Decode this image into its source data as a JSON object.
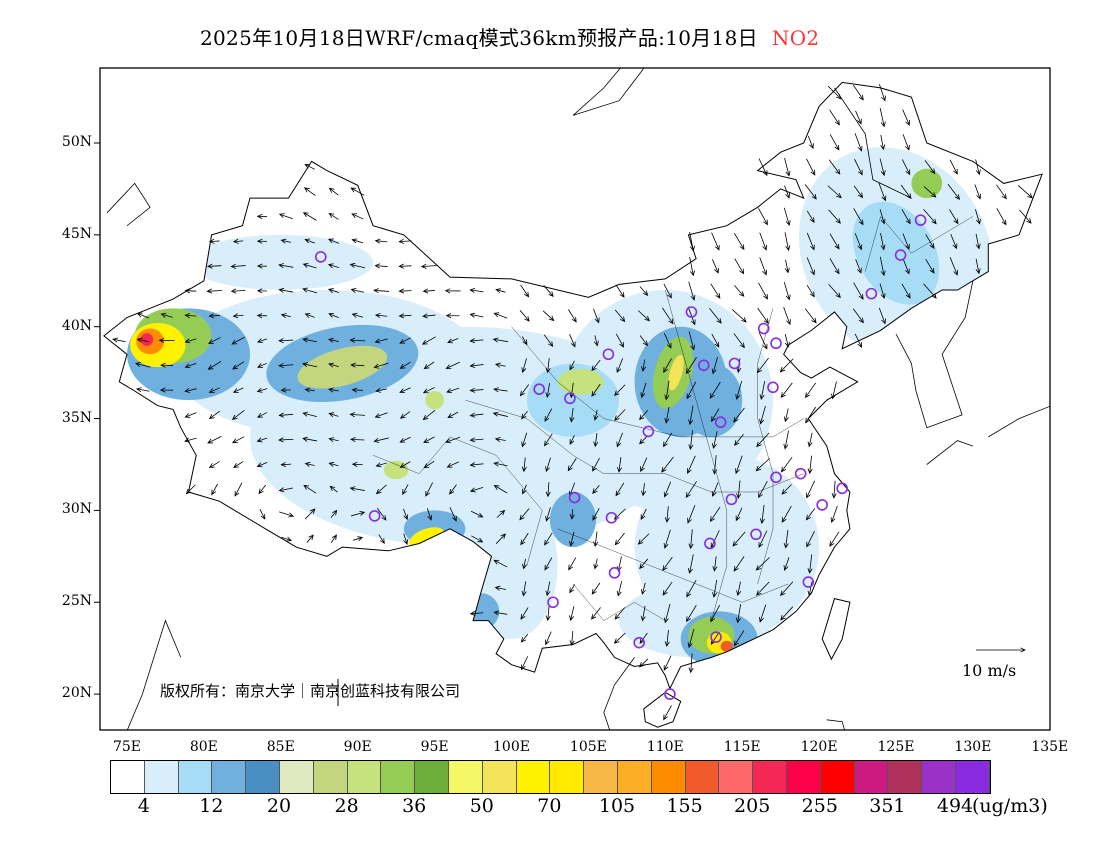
{
  "title": {
    "text": "2025年10月18日WRF/cmaq模式36km预报产品:10月18日",
    "species": "NO2"
  },
  "lat_labels": [
    "50N",
    "45N",
    "40N",
    "35N",
    "30N",
    "25N",
    "20N"
  ],
  "lon_labels": [
    "75E",
    "80E",
    "85E",
    "90E",
    "95E",
    "100E",
    "105E",
    "110E",
    "115E",
    "120E",
    "125E",
    "130E",
    "135E"
  ],
  "copyright": "版权所有：南京大学｜南京创蓝科技有限公司",
  "wind_scale_label": "10 m/s",
  "colorbar": {
    "colors": [
      "#ffffff",
      "#d8eefa",
      "#a6dcf5",
      "#6fb0de",
      "#4a8fc4",
      "#e0eac0",
      "#c3d67f",
      "#c6e27c",
      "#95cc55",
      "#6fad3a",
      "#f4f766",
      "#f3e45a",
      "#fff200",
      "#ffea00",
      "#f6b748",
      "#fdae26",
      "#ff8c00",
      "#f15a2c",
      "#ff6868",
      "#f52855",
      "#ff0048",
      "#ff0000",
      "#cc1a80",
      "#b0325c",
      "#9a32c8",
      "#8a2be2"
    ],
    "labels": [
      "4",
      "12",
      "20",
      "28",
      "36",
      "50",
      "70",
      "105",
      "155",
      "205",
      "255",
      "351",
      "494"
    ],
    "units": "(ug/m3)"
  }
}
